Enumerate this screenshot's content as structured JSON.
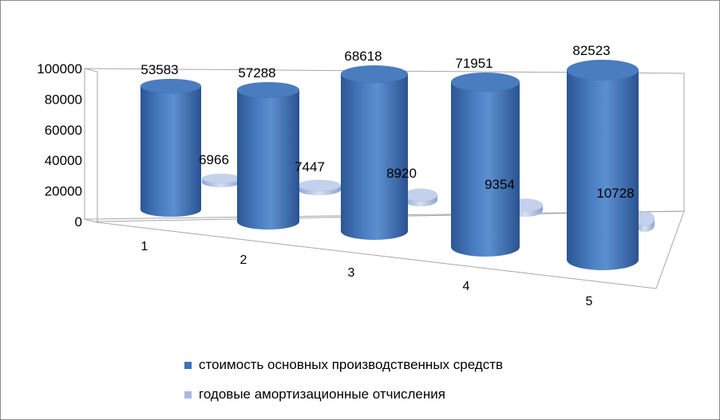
{
  "chart_data": {
    "type": "bar",
    "title": "",
    "xlabel": "",
    "ylabel": "",
    "categories": [
      "1",
      "2",
      "3",
      "4",
      "5"
    ],
    "yticks": [
      "100000",
      "80000",
      "60000",
      "40000",
      "20000",
      "0"
    ],
    "ylim": [
      0,
      100000
    ],
    "grid": false,
    "legend_position": "bottom",
    "series": [
      {
        "name": "стоимость основных производственных средств",
        "values": [
          53583,
          57288,
          68618,
          71951,
          82523
        ],
        "labels": [
          "53583",
          "57288",
          "68618",
          "71951",
          "82523"
        ],
        "color": "#3f71b5"
      },
      {
        "name": "годовые амортизационные отчисления",
        "values": [
          6966,
          7447,
          8920,
          9354,
          10728
        ],
        "labels": [
          "6966",
          "7447",
          "8920",
          "9354",
          "10728"
        ],
        "color": "#a7b9e0"
      }
    ]
  }
}
